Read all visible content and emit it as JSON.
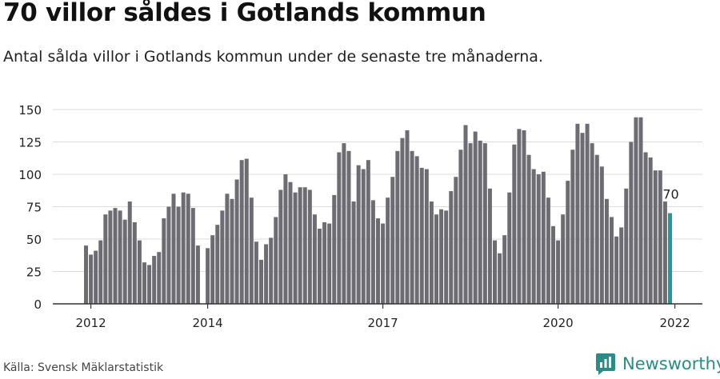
{
  "title": "70 villor såldes i Gotlands kommun",
  "subtitle": "Antal sålda villor i Gotlands kommun under de senaste tre månaderna.",
  "source": "Källa: Svensk Mäklarstatistik",
  "brand": "Newsworthy",
  "colors": {
    "bar": "#6d6c72",
    "highlight": "#1f9a94",
    "grid": "#dcdcdc",
    "axis": "#333333",
    "brand": "#2a8c86"
  },
  "chart_data": {
    "type": "bar",
    "x_start": "2011-12",
    "x_end": "2022-01",
    "ylim": [
      0,
      150
    ],
    "yticks": [
      0,
      25,
      50,
      75,
      100,
      125,
      150
    ],
    "xticks": [
      {
        "label": "2012",
        "date": "2012-01"
      },
      {
        "label": "2014",
        "date": "2014-01"
      },
      {
        "label": "2017",
        "date": "2017-01"
      },
      {
        "label": "2020",
        "date": "2020-01"
      },
      {
        "label": "2022",
        "date": "2022-01"
      }
    ],
    "highlight_label": "70",
    "values": [
      45,
      38,
      41,
      49,
      69,
      72,
      74,
      72,
      65,
      79,
      63,
      49,
      32,
      30,
      37,
      40,
      66,
      75,
      85,
      75,
      86,
      85,
      74,
      45,
      0,
      43,
      53,
      61,
      72,
      85,
      81,
      96,
      111,
      112,
      82,
      48,
      34,
      46,
      51,
      67,
      88,
      100,
      94,
      86,
      90,
      90,
      88,
      69,
      58,
      63,
      62,
      84,
      117,
      124,
      118,
      79,
      107,
      104,
      111,
      80,
      66,
      62,
      82,
      98,
      118,
      128,
      134,
      118,
      114,
      105,
      104,
      79,
      69,
      73,
      72,
      87,
      98,
      119,
      138,
      124,
      133,
      126,
      124,
      89,
      49,
      39,
      53,
      86,
      123,
      135,
      134,
      115,
      104,
      100,
      102,
      82,
      60,
      49,
      69,
      95,
      119,
      139,
      132,
      139,
      124,
      115,
      106,
      81,
      67,
      52,
      59,
      89,
      125,
      144,
      144,
      117,
      113,
      103,
      103,
      79,
      70
    ]
  }
}
